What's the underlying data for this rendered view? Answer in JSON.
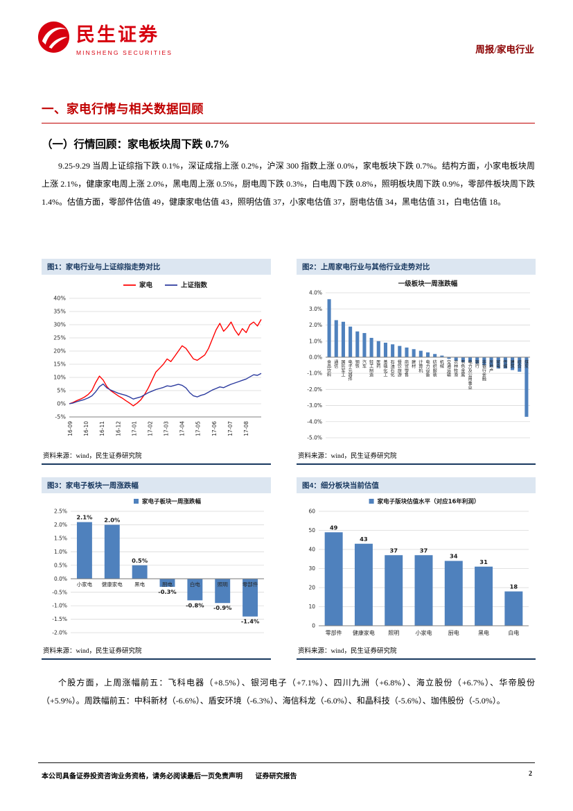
{
  "colors": {
    "brand_red": "#D7000F",
    "heading_red": "#C00000",
    "report_type_red": "#8B0000",
    "figure_header_bg": "#DCE6F1",
    "figure_header_text": "#17375E",
    "bar_blue": "#4F81BD",
    "line_red": "#FF0000",
    "line_blue": "#2B3A9E"
  },
  "header": {
    "brand_cn": "民生证券",
    "brand_en": "MINSHENG SECURITIES",
    "report_type": "周报/家电行业"
  },
  "section": {
    "title": "一、家电行情与相关数据回顾"
  },
  "subsection": {
    "title": "（一）行情回顾：家电板块周下跌 0.7%"
  },
  "paragraphs": {
    "p1": "9.25-9.29 当周上证综指下跌 0.1%，深证成指上涨 0.2%，沪深 300 指数上涨 0.0%，家电板块下跌 0.7%。结构方面，小家电板块周上涨 2.1%，健康家电周上涨 2.0%，黑电周上涨 0.5%，厨电周下跌 0.3%，白电周下跌 0.8%，照明板块周下跌 0.9%，零部件板块周下跌 1.4%。估值方面，零部件估值 49，健康家电估值 43，照明估值 37，小家电估值 37，厨电估值 34，黑电估值 31，白电估值 18。",
    "p2": "个股方面，上周涨幅前五：飞科电器（+8.5%）、银河电子（+7.1%）、四川九洲（+6.8%）、海立股份（+6.7%）、华帝股份（+5.9%）。周跌幅前五：中科新材（-6.6%）、盾安环境（-6.3%）、海信科龙（-6.0%）、和晶科技（-5.6%）、珈伟股份（-5.0%）。"
  },
  "figures": [
    {
      "title": "图1：家电行业与上证综指走势对比",
      "source": "资料来源：wind，民生证券研究院"
    },
    {
      "title": "图2：上周家电行业与其他行业走势对比",
      "source": "资料来源：wind，民生证券研究院"
    },
    {
      "title": "图3：家电子板块一周涨跌幅",
      "source": "资料来源：wind，民生证券研究院"
    },
    {
      "title": "图4：细分板块当前估值",
      "source": "资料来源：wind，民生证券研究院"
    }
  ],
  "footer": {
    "disclaimer": "本公司具备证券投资咨询业务资格，请务必阅读最后一页免责声明",
    "report_label": "证券研究报告",
    "page": "2"
  },
  "chart_data": [
    {
      "id": "fig1",
      "type": "line",
      "legend_entries": [
        "家电",
        "上证指数"
      ],
      "x_ticks": [
        "16-09",
        "16-10",
        "16-11",
        "16-12",
        "17-01",
        "17-02",
        "17-03",
        "17-04",
        "17-05",
        "17-06",
        "17-07",
        "17-08"
      ],
      "ylim": [
        -5,
        40
      ],
      "ytick_step": 5,
      "ytick_labels": [
        "-5%",
        "0%",
        "5%",
        "10%",
        "15%",
        "20%",
        "25%",
        "30%",
        "35%",
        "40%"
      ],
      "series": [
        {
          "name": "家电",
          "color": "#FF0000",
          "values": [
            0,
            0.5,
            1.2,
            1.8,
            2.5,
            3.5,
            5,
            8,
            10.5,
            9,
            6.5,
            5,
            4,
            3,
            2.2,
            1.2,
            0.3,
            -0.8,
            0.2,
            1.5,
            3.5,
            6,
            9,
            12,
            13.5,
            15,
            17,
            16,
            18,
            20,
            22,
            21,
            19,
            17,
            16.5,
            17.5,
            18.5,
            21,
            24.5,
            28,
            30.5,
            27.5,
            29,
            31,
            28,
            26,
            28.5,
            27,
            30,
            31,
            29.5,
            32
          ]
        },
        {
          "name": "上证指数",
          "color": "#2B3A9E",
          "values": [
            0,
            0.3,
            0.8,
            1.2,
            1.6,
            2.2,
            3,
            4.5,
            6.5,
            7.5,
            6,
            5.2,
            4.6,
            4,
            3.6,
            3.2,
            2.6,
            1.8,
            2.2,
            2.6,
            3.4,
            4.2,
            4.8,
            5.4,
            5.8,
            6.2,
            6.8,
            6.6,
            7,
            7.4,
            7,
            6,
            4.2,
            3,
            2.6,
            3.2,
            3.6,
            4.4,
            5.2,
            5.8,
            6.4,
            6.1,
            6.8,
            7.4,
            7.9,
            8.4,
            8.9,
            9.4,
            10.2,
            11,
            10.8,
            11.5
          ]
        }
      ]
    },
    {
      "id": "fig2",
      "type": "bar",
      "title": "一级板块一周涨跌幅",
      "bar_color": "#4F81BD",
      "cat_label_mode": "stacked",
      "bar_frac": 0.5,
      "ylim": [
        -5,
        4
      ],
      "ytick_step": 1,
      "ytick_labels": [
        "-5.0%",
        "-4.0%",
        "-3.0%",
        "-2.0%",
        "-1.0%",
        "0.0%",
        "1.0%",
        "2.0%",
        "3.0%",
        "4.0%"
      ],
      "categories": [
        "食品饮料",
        "通信",
        "国防军工",
        "电子元器件",
        "钢铁",
        "汽车",
        "轻工制造",
        "医药",
        "基础化工",
        "石油石化",
        "餐饮旅游",
        "商贸零售",
        "建材",
        "计算机",
        "电力设备",
        "纺织服装",
        "机械",
        "交通运输",
        "农林牧渔",
        "有色金属",
        "电力及公用事业",
        "银行",
        "非银行金融",
        "房地产",
        "家电",
        "传媒",
        "建筑",
        "综合",
        "煤炭"
      ],
      "values": [
        3.6,
        2.3,
        2.2,
        1.9,
        1.6,
        1.5,
        1.2,
        1.0,
        0.9,
        0.8,
        0.7,
        0.6,
        0.5,
        0.4,
        0.3,
        0.2,
        0.1,
        -0.1,
        -0.2,
        -0.3,
        -0.3,
        -0.4,
        -0.5,
        -0.6,
        -0.7,
        -0.7,
        -0.8,
        -0.9,
        -3.7
      ]
    },
    {
      "id": "fig3",
      "type": "bar",
      "legend": "家电子板块一周涨跌幅",
      "bar_color": "#4F81BD",
      "cat_label_mode": "zero",
      "bar_frac": 0.55,
      "show_values": true,
      "data_labels": [
        "2.1%",
        "2.0%",
        "0.5%",
        "-0.3%",
        "-0.8%",
        "-0.9%",
        "-1.4%"
      ],
      "ylim": [
        -2,
        2.5
      ],
      "ytick_step": 0.5,
      "ytick_labels": [
        "-2.0%",
        "-1.5%",
        "-1.0%",
        "-0.5%",
        "0.0%",
        "0.5%",
        "1.0%",
        "1.5%",
        "2.0%",
        "2.5%"
      ],
      "categories": [
        "小家电",
        "健康家电",
        "黑电",
        "厨电",
        "白电",
        "照明",
        "零部件"
      ],
      "values": [
        2.1,
        2.0,
        0.5,
        -0.3,
        -0.8,
        -0.9,
        -1.4
      ]
    },
    {
      "id": "fig4",
      "type": "bar",
      "legend": "家电子版块估值水平（对应16年利润）",
      "bar_color": "#4F81BD",
      "cat_label_mode": "below",
      "bar_frac": 0.6,
      "show_values": true,
      "data_labels": [
        "49",
        "43",
        "37",
        "37",
        "34",
        "31",
        "18"
      ],
      "ylim": [
        0,
        60
      ],
      "ytick_step": 10,
      "ytick_labels": [
        "0",
        "10",
        "20",
        "30",
        "40",
        "50",
        "60"
      ],
      "categories": [
        "零部件",
        "健康家电",
        "照明",
        "小家电",
        "厨电",
        "黑电",
        "白电"
      ],
      "values": [
        49,
        43,
        37,
        37,
        34,
        31,
        18
      ]
    }
  ]
}
